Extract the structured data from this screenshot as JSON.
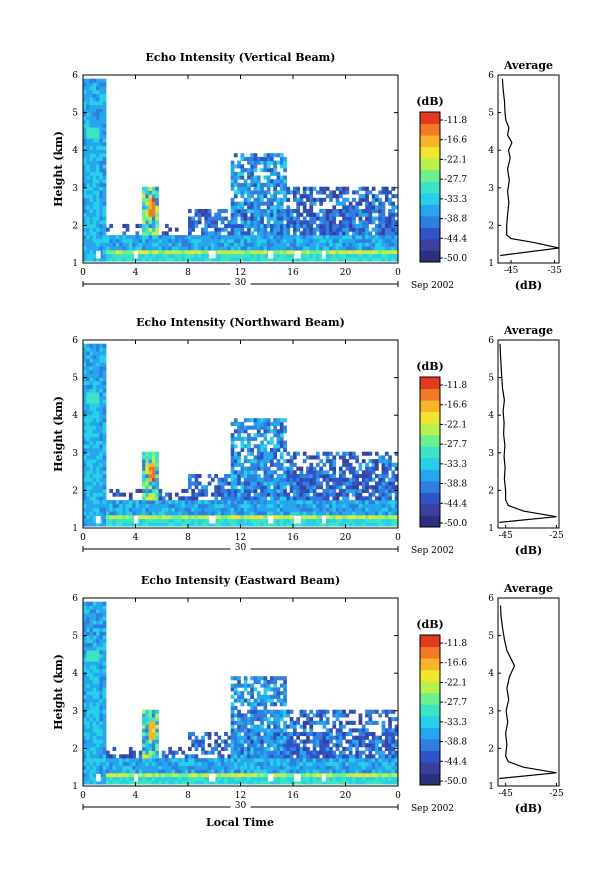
{
  "footer": {
    "xlabel": "Local Time"
  },
  "chart_data": [
    {
      "type": "heatmap",
      "title": "Echo Intensity (Vertical Beam)",
      "ylabel": "Height (km)",
      "xlim": [
        0,
        24
      ],
      "ylim": [
        1,
        6
      ],
      "x_ticks": [
        "0",
        "4",
        "8",
        "12",
        "16",
        "20",
        "0"
      ],
      "y_ticks": [
        "1",
        "2",
        "3",
        "4",
        "5",
        "6"
      ],
      "date_day": "30",
      "date_month_year": "Sep 2002",
      "colorbar": {
        "unit": "(dB)",
        "ticks": [
          "-11.8",
          "-16.6",
          "-22.1",
          "-27.7",
          "-33.3",
          "-38.8",
          "-44.4",
          "-50.0"
        ]
      },
      "profile": {
        "title": "Average",
        "xlabel": "(dB)",
        "x_ticks": [
          "-45",
          "-35"
        ],
        "xlim": [
          -48,
          -34
        ],
        "points": [
          [
            -47.5,
            1.2
          ],
          [
            -34,
            1.4
          ],
          [
            -40,
            1.55
          ],
          [
            -45,
            1.65
          ],
          [
            -46,
            1.75
          ],
          [
            -46,
            2.0
          ],
          [
            -45.8,
            2.3
          ],
          [
            -45.5,
            2.6
          ],
          [
            -45.8,
            2.9
          ],
          [
            -45.4,
            3.2
          ],
          [
            -45.8,
            3.5
          ],
          [
            -45.2,
            3.8
          ],
          [
            -45.6,
            4.0
          ],
          [
            -44.8,
            4.2
          ],
          [
            -45.8,
            4.4
          ],
          [
            -45.5,
            4.6
          ],
          [
            -46.2,
            4.8
          ],
          [
            -46.4,
            5.0
          ],
          [
            -46.5,
            5.3
          ],
          [
            -46.8,
            5.6
          ],
          [
            -47,
            5.9
          ]
        ]
      }
    },
    {
      "type": "heatmap",
      "title": "Echo Intensity (Northward Beam)",
      "ylabel": "Height (km)",
      "xlim": [
        0,
        24
      ],
      "ylim": [
        1,
        6
      ],
      "x_ticks": [
        "0",
        "4",
        "8",
        "12",
        "16",
        "20",
        "0"
      ],
      "y_ticks": [
        "1",
        "2",
        "3",
        "4",
        "5",
        "6"
      ],
      "date_day": "30",
      "date_month_year": "Sep 2002",
      "colorbar": {
        "unit": "(dB)",
        "ticks": [
          "-11.8",
          "-16.6",
          "-22.1",
          "-27.7",
          "-33.3",
          "-38.8",
          "-44.4",
          "-50.0"
        ]
      },
      "profile": {
        "title": "Average",
        "xlabel": "(dB)",
        "x_ticks": [
          "-45",
          "-25"
        ],
        "xlim": [
          -48,
          -24
        ],
        "points": [
          [
            -47.5,
            1.15
          ],
          [
            -25,
            1.3
          ],
          [
            -38,
            1.45
          ],
          [
            -44,
            1.6
          ],
          [
            -45,
            1.75
          ],
          [
            -45,
            2.0
          ],
          [
            -45.5,
            2.3
          ],
          [
            -45.2,
            2.6
          ],
          [
            -45.6,
            2.9
          ],
          [
            -45.3,
            3.2
          ],
          [
            -45.8,
            3.5
          ],
          [
            -45.6,
            3.8
          ],
          [
            -46,
            4.1
          ],
          [
            -45.5,
            4.4
          ],
          [
            -46.2,
            4.7
          ],
          [
            -46.5,
            5.0
          ],
          [
            -46.8,
            5.3
          ],
          [
            -47,
            5.6
          ],
          [
            -47.2,
            5.9
          ]
        ]
      }
    },
    {
      "type": "heatmap",
      "title": "Echo Intensity (Eastward Beam)",
      "ylabel": "Height (km)",
      "xlim": [
        0,
        24
      ],
      "ylim": [
        1,
        6
      ],
      "x_ticks": [
        "0",
        "4",
        "8",
        "12",
        "16",
        "20",
        "0"
      ],
      "y_ticks": [
        "1",
        "2",
        "3",
        "4",
        "5",
        "6"
      ],
      "date_day": "30",
      "date_month_year": "Sep 2002",
      "colorbar": {
        "unit": "(dB)",
        "ticks": [
          "-11.8",
          "-16.6",
          "-22.1",
          "-27.7",
          "-33.3",
          "-38.8",
          "-44.4",
          "-50.0"
        ]
      },
      "profile": {
        "title": "Average",
        "xlabel": "(dB)",
        "x_ticks": [
          "-45",
          "-25"
        ],
        "xlim": [
          -48,
          -24
        ],
        "points": [
          [
            -47.5,
            1.2
          ],
          [
            -25,
            1.35
          ],
          [
            -38,
            1.5
          ],
          [
            -44,
            1.65
          ],
          [
            -45,
            1.8
          ],
          [
            -44.5,
            2.1
          ],
          [
            -45,
            2.4
          ],
          [
            -44.2,
            2.7
          ],
          [
            -44.8,
            3.0
          ],
          [
            -43.8,
            3.3
          ],
          [
            -44.5,
            3.6
          ],
          [
            -43.5,
            3.9
          ],
          [
            -41.5,
            4.2
          ],
          [
            -43,
            4.4
          ],
          [
            -44.5,
            4.6
          ],
          [
            -45.5,
            4.9
          ],
          [
            -46.2,
            5.2
          ],
          [
            -46.8,
            5.5
          ],
          [
            -47,
            5.8
          ]
        ]
      }
    }
  ]
}
